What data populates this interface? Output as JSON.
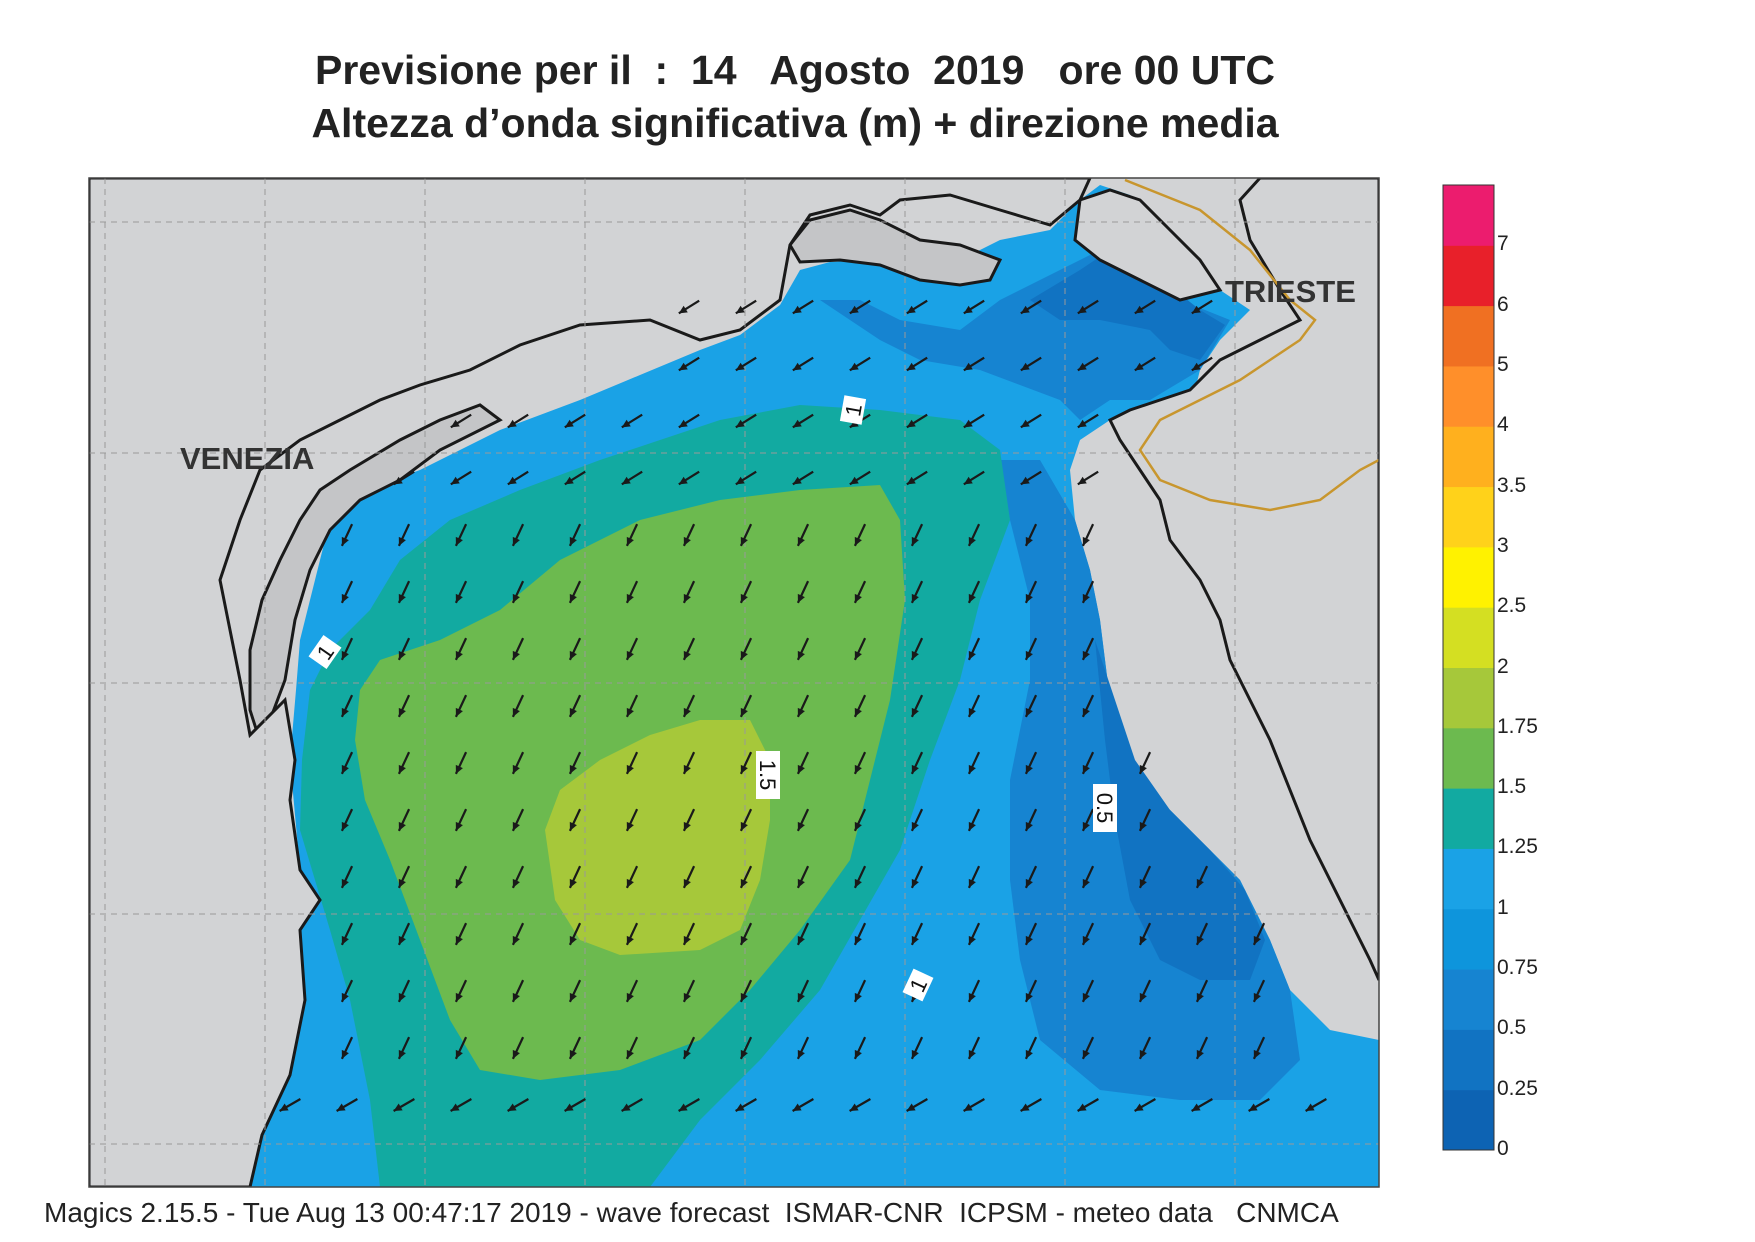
{
  "title": {
    "line1": "Previsione per il  :  14   Agosto  2019   ore 00 UTC",
    "line2": "Altezza d’onda significativa (m) + direzione media"
  },
  "footer": "Magics 2.15.5 - Tue Aug 13 00:47:17 2019 - wave forecast  ISMAR-CNR  ICPSM - meteo data   CNMCA",
  "places": {
    "venezia": "VENEZIA",
    "trieste": "TRIESTE"
  },
  "contour_labels": {
    "c1_north": "1",
    "c1_west": "1",
    "c1_south": "1",
    "c15": "1.5",
    "c05": "0.5"
  },
  "legend": {
    "labels": [
      "0",
      "0.25",
      "0.5",
      "0.75",
      "1",
      "1.25",
      "1.5",
      "1.75",
      "2",
      "2.5",
      "3",
      "3.5",
      "4",
      "5",
      "6",
      "7"
    ],
    "colors": [
      "#0d63b3",
      "#1173c2",
      "#1684d1",
      "#0e95dc",
      "#1aa2e6",
      "#12aaa1",
      "#6cba4f",
      "#a6c83a",
      "#d4df22",
      "#fff200",
      "#ffd21a",
      "#ffb01e",
      "#ff8f2a",
      "#f07022",
      "#e8202a",
      "#ec1c6e"
    ]
  },
  "colors": {
    "land": "#d2d3d5",
    "lagoon": "#c4c5c7",
    "coast": "#1a1a1a",
    "border": "#c8962e",
    "arrow": "#1a1a1a"
  },
  "wave_direction": "south-southwest"
}
